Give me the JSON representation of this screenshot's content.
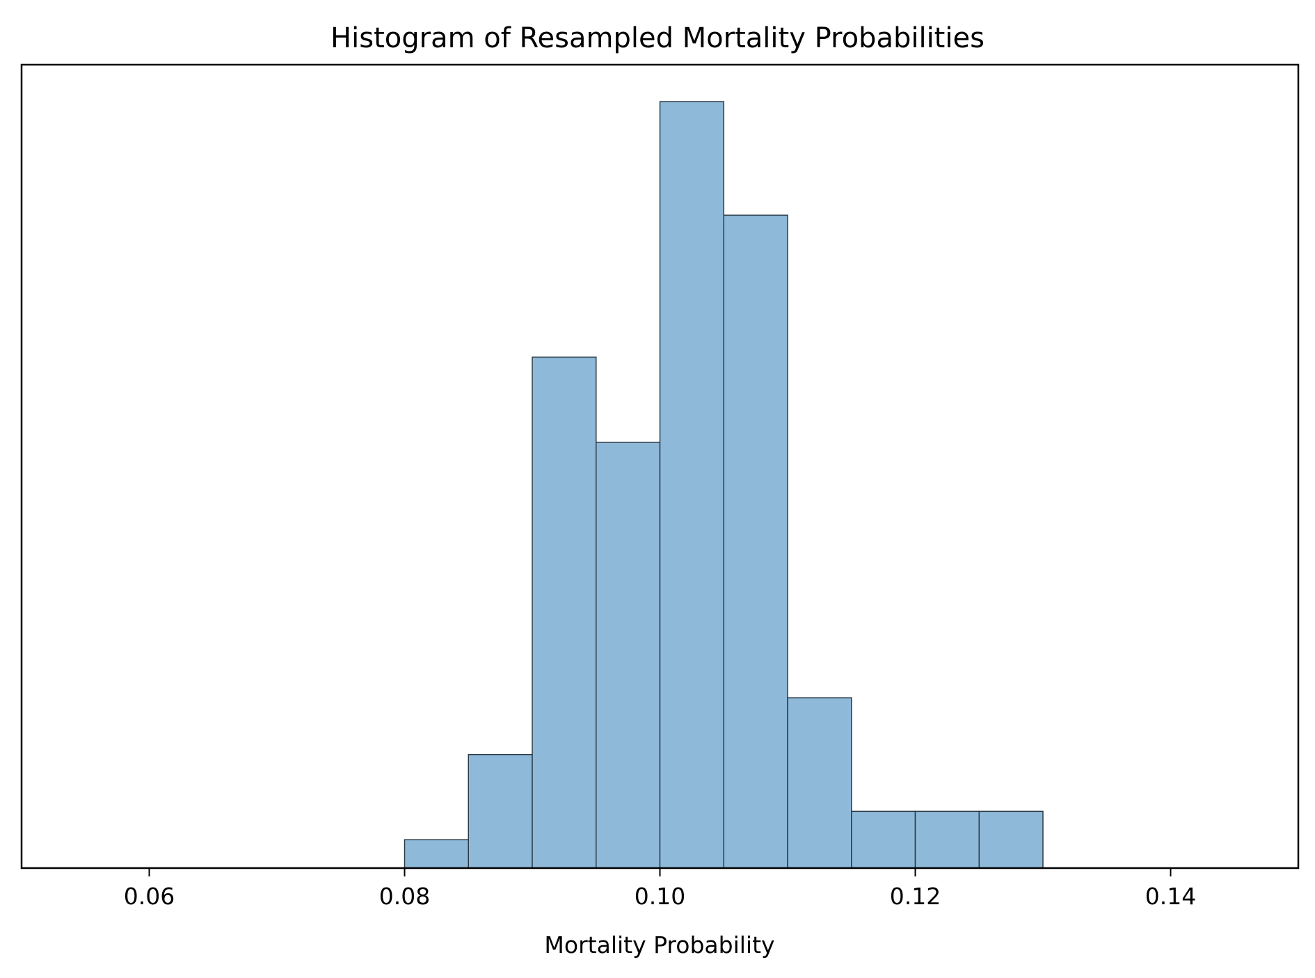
{
  "chart_data": {
    "type": "bar",
    "title": "Histogram of Resampled Mortality Probabilities",
    "xlabel": "Mortality Probability",
    "ylabel": "",
    "xlim": [
      0.05,
      0.15
    ],
    "ylim": [
      0,
      28.3
    ],
    "x_ticks": [
      "0.06",
      "0.08",
      "0.10",
      "0.12",
      "0.14"
    ],
    "x_tick_values": [
      0.06,
      0.08,
      0.1,
      0.12,
      0.14
    ],
    "bin_width": 0.005,
    "bins": [
      {
        "start": 0.08,
        "end": 0.085,
        "count": 1
      },
      {
        "start": 0.085,
        "end": 0.09,
        "count": 4
      },
      {
        "start": 0.09,
        "end": 0.095,
        "count": 18
      },
      {
        "start": 0.095,
        "end": 0.1,
        "count": 15
      },
      {
        "start": 0.1,
        "end": 0.105,
        "count": 27
      },
      {
        "start": 0.105,
        "end": 0.11,
        "count": 23
      },
      {
        "start": 0.11,
        "end": 0.115,
        "count": 6
      },
      {
        "start": 0.115,
        "end": 0.12,
        "count": 2
      },
      {
        "start": 0.12,
        "end": 0.125,
        "count": 2
      },
      {
        "start": 0.125,
        "end": 0.13,
        "count": 2
      }
    ],
    "grid": false,
    "y_axis_visible": false,
    "bar_color": "#8fb9d9",
    "bar_edge_color": "#2b3a46"
  }
}
